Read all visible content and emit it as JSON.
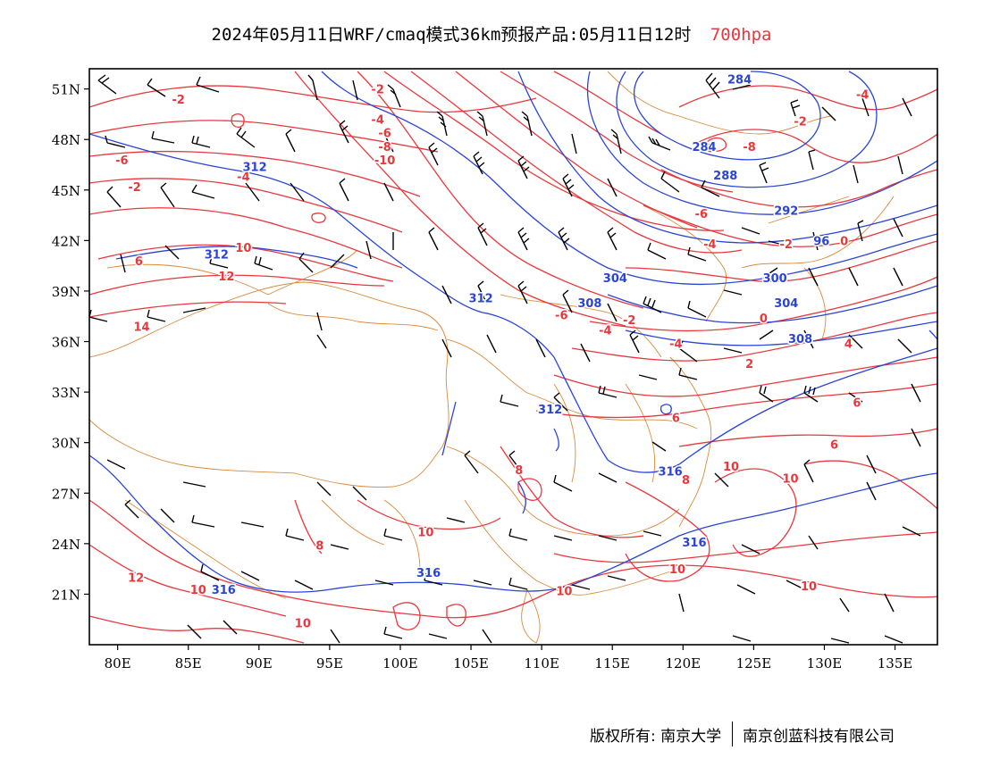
{
  "title": {
    "main": "2024年05月11日WRF/cmaq模式36km预报产品:05月11日12时",
    "level": "700hpa"
  },
  "axes": {
    "lat_labels": [
      "51N",
      "48N",
      "45N",
      "42N",
      "39N",
      "36N",
      "33N",
      "30N",
      "27N",
      "24N",
      "21N"
    ],
    "lon_labels": [
      "80E",
      "85E",
      "90E",
      "95E",
      "100E",
      "105E",
      "110E",
      "115E",
      "120E",
      "125E",
      "130E",
      "135E"
    ],
    "lat_values": [
      51,
      48,
      45,
      42,
      39,
      36,
      33,
      30,
      27,
      24,
      21
    ],
    "lon_values": [
      80,
      85,
      90,
      95,
      100,
      105,
      110,
      115,
      120,
      125,
      130,
      135
    ],
    "lon_range": [
      78,
      138
    ],
    "lat_range": [
      18,
      52.2
    ]
  },
  "colors": {
    "temperature": "#e8383d",
    "geopotential": "#2a44d6",
    "border": "#d98a3c",
    "wind": "#000000"
  },
  "contour_labels": {
    "temperature": [
      {
        "text": "-2",
        "lon": 84.3,
        "lat": 50.4
      },
      {
        "text": "-2",
        "lon": 98.4,
        "lat": 51.0
      },
      {
        "text": "-4",
        "lon": 98.4,
        "lat": 49.2
      },
      {
        "text": "-6",
        "lon": 98.9,
        "lat": 48.4
      },
      {
        "text": "-8",
        "lon": 98.9,
        "lat": 47.6
      },
      {
        "text": "-10",
        "lon": 98.9,
        "lat": 46.8
      },
      {
        "text": "-6",
        "lon": 80.3,
        "lat": 46.8
      },
      {
        "text": "-4",
        "lon": 88.9,
        "lat": 45.8
      },
      {
        "text": "-2",
        "lon": 81.2,
        "lat": 45.2
      },
      {
        "text": "10",
        "lon": 88.9,
        "lat": 41.6
      },
      {
        "text": "6",
        "lon": 81.5,
        "lat": 40.8
      },
      {
        "text": "12",
        "lon": 87.7,
        "lat": 39.9
      },
      {
        "text": "14",
        "lon": 81.7,
        "lat": 36.9
      },
      {
        "text": "-6",
        "lon": 111.4,
        "lat": 37.6
      },
      {
        "text": "-4",
        "lon": 114.5,
        "lat": 36.7
      },
      {
        "text": "-2",
        "lon": 116.2,
        "lat": 37.3
      },
      {
        "text": "-8",
        "lon": 121.8,
        "lat": 47.5
      },
      {
        "text": "-8",
        "lon": 124.7,
        "lat": 47.6
      },
      {
        "text": "-6",
        "lon": 121.3,
        "lat": 43.6
      },
      {
        "text": "-4",
        "lon": 121.9,
        "lat": 41.8
      },
      {
        "text": "-2",
        "lon": 127.3,
        "lat": 41.8
      },
      {
        "text": "-4",
        "lon": 132.7,
        "lat": 50.7
      },
      {
        "text": "-2",
        "lon": 128.3,
        "lat": 49.1
      },
      {
        "text": "0",
        "lon": 131.4,
        "lat": 42.0
      },
      {
        "text": "0",
        "lon": 125.7,
        "lat": 37.4
      },
      {
        "text": "-4",
        "lon": 119.5,
        "lat": 35.9
      },
      {
        "text": "4",
        "lon": 131.7,
        "lat": 35.9
      },
      {
        "text": "2",
        "lon": 124.7,
        "lat": 34.7
      },
      {
        "text": "6",
        "lon": 132.3,
        "lat": 32.4
      },
      {
        "text": "6",
        "lon": 119.5,
        "lat": 31.5
      },
      {
        "text": "6",
        "lon": 130.7,
        "lat": 29.9
      },
      {
        "text": "8",
        "lon": 108.4,
        "lat": 28.4
      },
      {
        "text": "8",
        "lon": 120.2,
        "lat": 27.8
      },
      {
        "text": "10",
        "lon": 123.4,
        "lat": 28.6
      },
      {
        "text": "10",
        "lon": 127.6,
        "lat": 27.9
      },
      {
        "text": "10",
        "lon": 101.8,
        "lat": 24.7
      },
      {
        "text": "8",
        "lon": 94.3,
        "lat": 23.9
      },
      {
        "text": "10",
        "lon": 119.6,
        "lat": 22.5
      },
      {
        "text": "10",
        "lon": 111.6,
        "lat": 21.2
      },
      {
        "text": "10",
        "lon": 128.9,
        "lat": 21.5
      },
      {
        "text": "12",
        "lon": 81.3,
        "lat": 22.0
      },
      {
        "text": "10",
        "lon": 85.7,
        "lat": 21.3
      },
      {
        "text": "10",
        "lon": 93.1,
        "lat": 19.3
      }
    ],
    "geopotential": [
      {
        "text": "284",
        "lon": 124.0,
        "lat": 51.6
      },
      {
        "text": "284",
        "lon": 121.5,
        "lat": 47.6
      },
      {
        "text": "288",
        "lon": 123.0,
        "lat": 45.9
      },
      {
        "text": "292",
        "lon": 127.3,
        "lat": 43.8
      },
      {
        "text": "96",
        "lon": 129.8,
        "lat": 42.0
      },
      {
        "text": "300",
        "lon": 126.5,
        "lat": 39.8
      },
      {
        "text": "304",
        "lon": 127.3,
        "lat": 38.3
      },
      {
        "text": "304",
        "lon": 115.2,
        "lat": 39.8
      },
      {
        "text": "308",
        "lon": 113.4,
        "lat": 38.3
      },
      {
        "text": "308",
        "lon": 128.3,
        "lat": 36.2
      },
      {
        "text": "312",
        "lon": 89.7,
        "lat": 46.4
      },
      {
        "text": "312",
        "lon": 87.0,
        "lat": 41.2
      },
      {
        "text": "312",
        "lon": 105.7,
        "lat": 38.6
      },
      {
        "text": "312",
        "lon": 110.6,
        "lat": 32.0
      },
      {
        "text": "316",
        "lon": 119.1,
        "lat": 28.3
      },
      {
        "text": "316",
        "lon": 120.8,
        "lat": 24.1
      },
      {
        "text": "316",
        "lon": 102.0,
        "lat": 22.3
      },
      {
        "text": "316",
        "lon": 87.5,
        "lat": 21.3
      }
    ]
  },
  "footer": {
    "left": "版权所有: 南京大学",
    "right": "南京创蓝科技有限公司"
  }
}
